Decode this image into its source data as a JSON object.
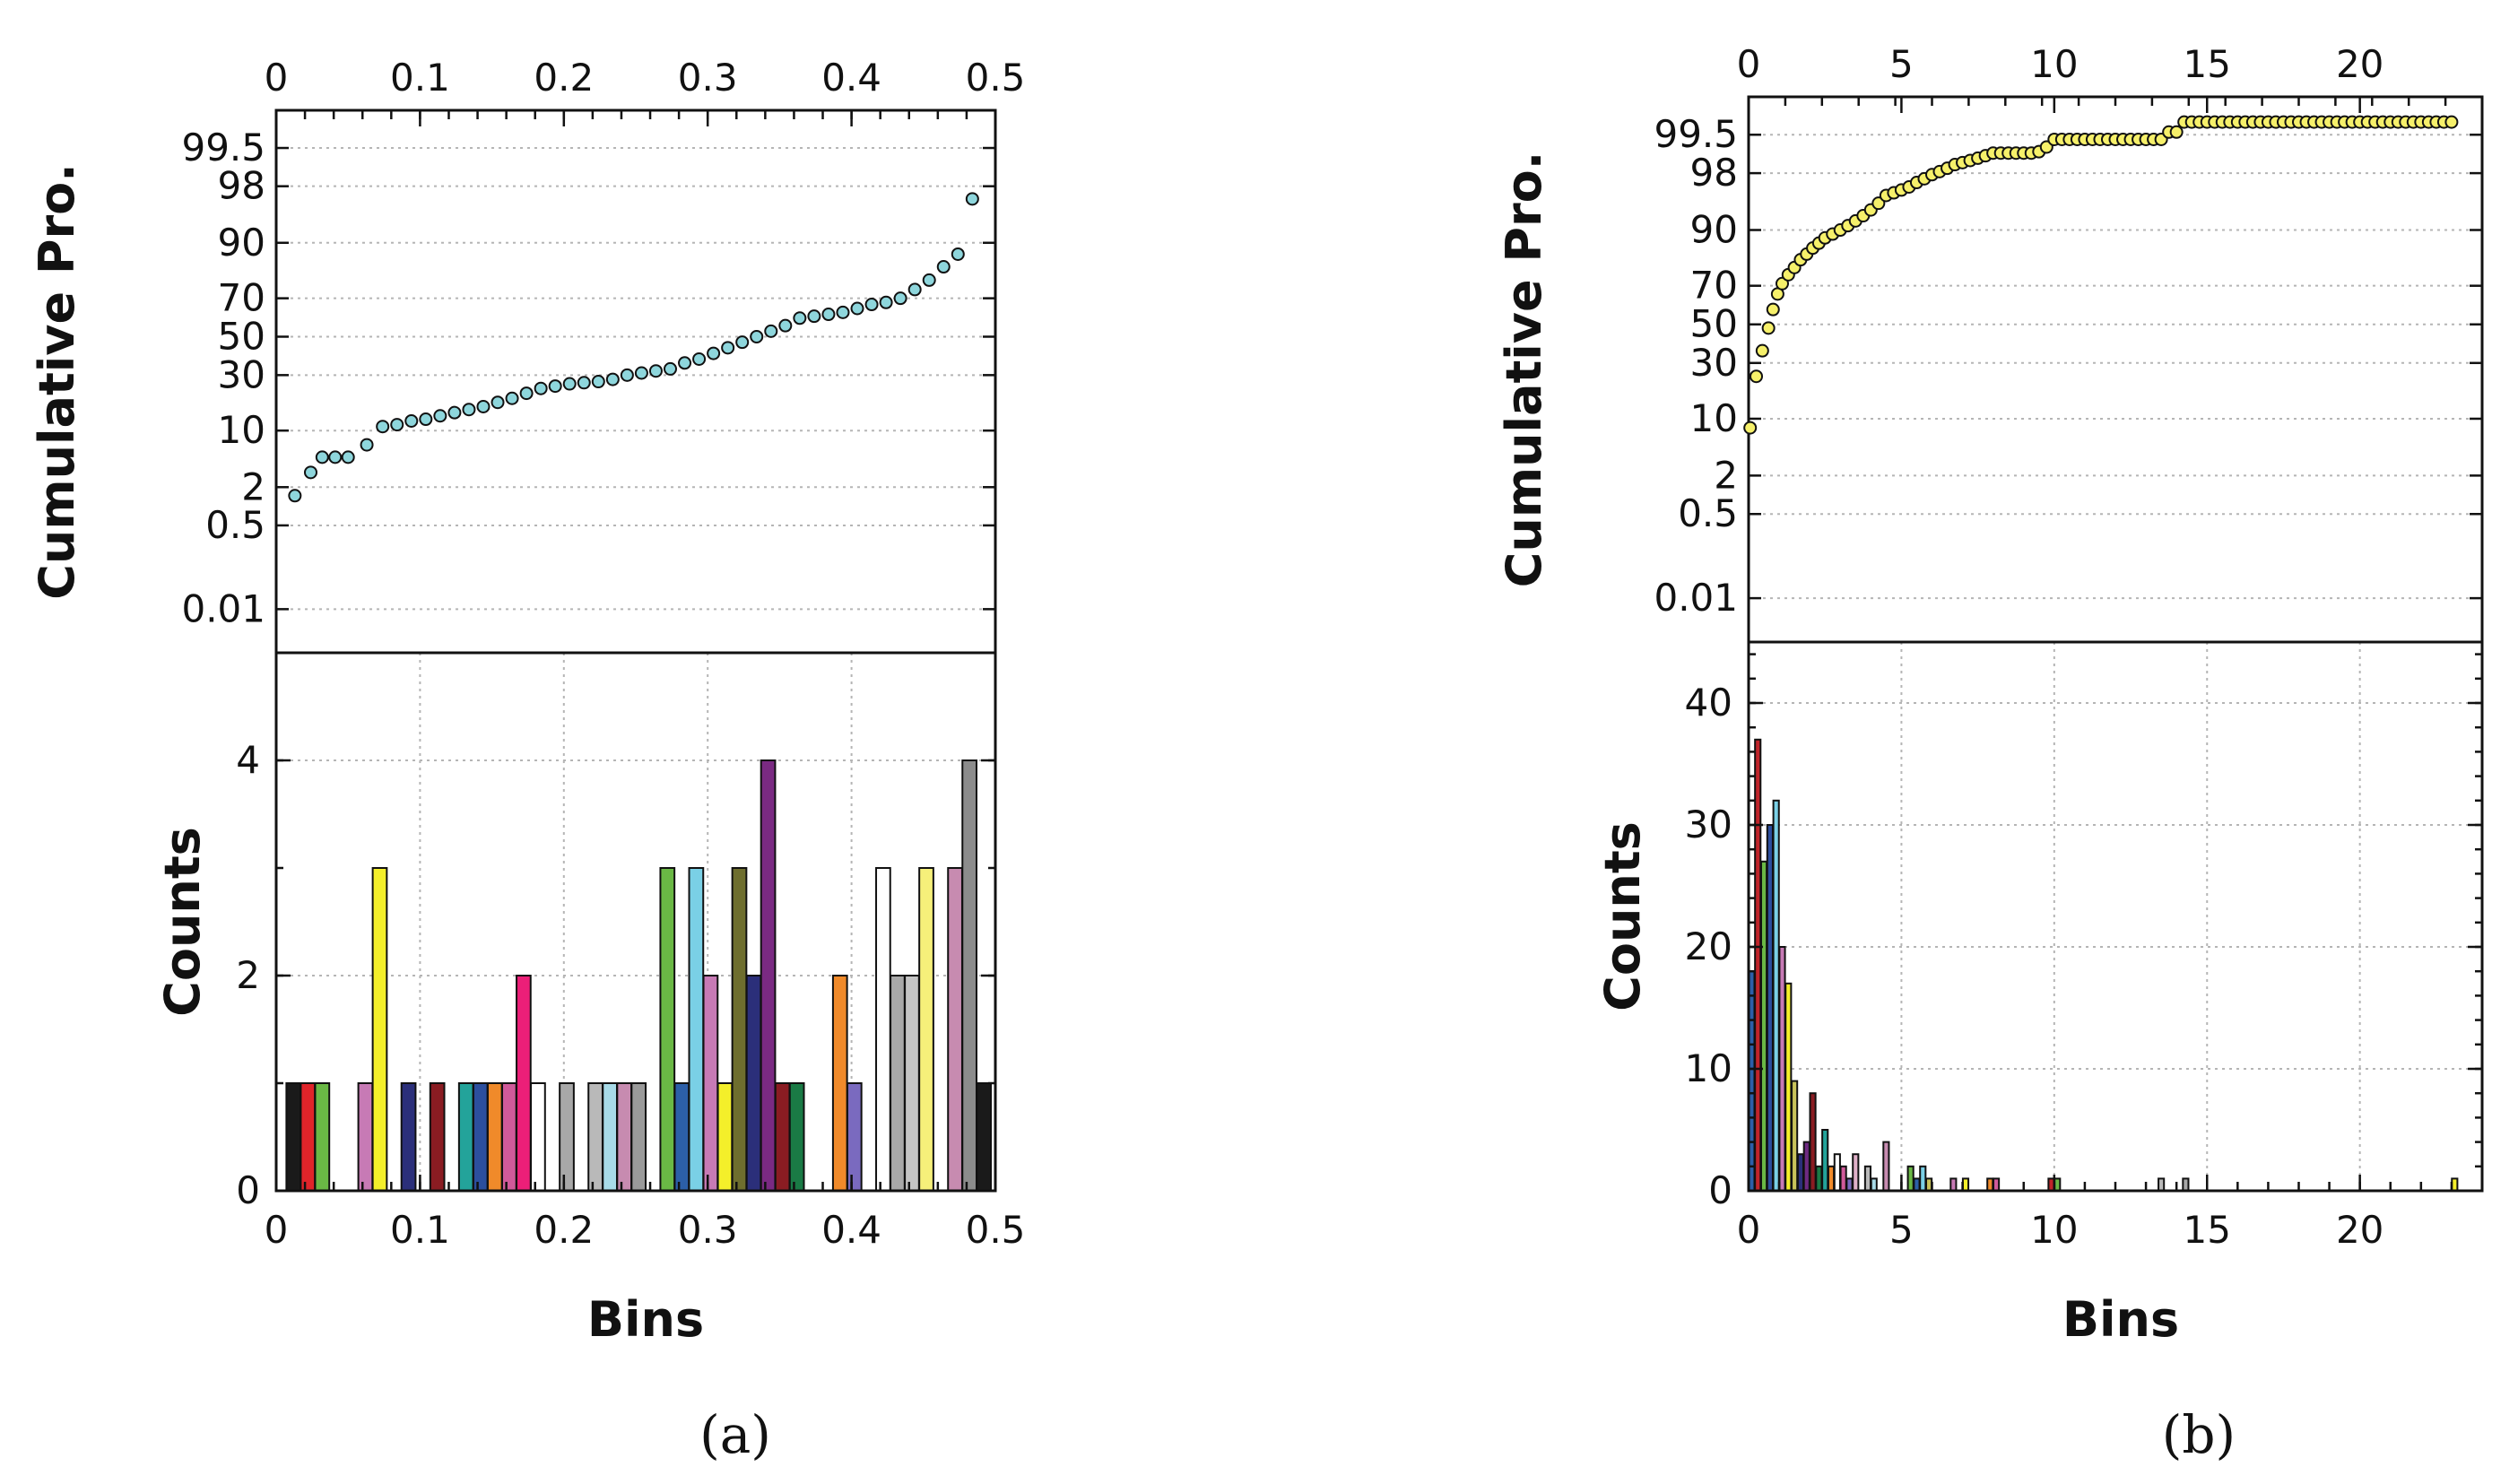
{
  "chart_data": [
    {
      "type": "scatter",
      "panel": "a",
      "caption": "(a)",
      "ylabel": "Cumulative Pro.",
      "xlim": [
        0,
        0.5
      ],
      "x_ticks": [
        "0",
        "0.1",
        "0.2",
        "0.3",
        "0.4",
        "0.5"
      ],
      "x_tick_values": [
        0,
        0.1,
        0.2,
        0.3,
        0.4,
        0.5
      ],
      "y_scale": "probability",
      "y_ticks": [
        "0.01",
        "0.5",
        "2",
        "10",
        "30",
        "50",
        "70",
        "90",
        "98",
        "99.5"
      ],
      "y_tick_values": [
        0.01,
        0.5,
        2,
        10,
        30,
        50,
        70,
        90,
        98,
        99.5
      ],
      "marker_color": "#8ed6dc",
      "points": [
        [
          0.013,
          1.5
        ],
        [
          0.024,
          3.2
        ],
        [
          0.032,
          5.0
        ],
        [
          0.041,
          5.0
        ],
        [
          0.05,
          5.0
        ],
        [
          0.063,
          7.0
        ],
        [
          0.074,
          11.0
        ],
        [
          0.084,
          11.5
        ],
        [
          0.094,
          12.5
        ],
        [
          0.104,
          13.0
        ],
        [
          0.114,
          14.0
        ],
        [
          0.124,
          15.0
        ],
        [
          0.134,
          16.0
        ],
        [
          0.144,
          17.0
        ],
        [
          0.154,
          18.5
        ],
        [
          0.164,
          20.0
        ],
        [
          0.174,
          22.0
        ],
        [
          0.184,
          24.0
        ],
        [
          0.194,
          25.0
        ],
        [
          0.204,
          26.0
        ],
        [
          0.214,
          26.5
        ],
        [
          0.224,
          27.0
        ],
        [
          0.234,
          28.0
        ],
        [
          0.244,
          30.0
        ],
        [
          0.254,
          31.0
        ],
        [
          0.264,
          32.0
        ],
        [
          0.274,
          33.0
        ],
        [
          0.284,
          36.0
        ],
        [
          0.294,
          38.0
        ],
        [
          0.304,
          41.0
        ],
        [
          0.314,
          44.0
        ],
        [
          0.324,
          47.0
        ],
        [
          0.334,
          50.0
        ],
        [
          0.344,
          53.0
        ],
        [
          0.354,
          56.0
        ],
        [
          0.364,
          60.0
        ],
        [
          0.374,
          61.0
        ],
        [
          0.384,
          62.0
        ],
        [
          0.394,
          63.0
        ],
        [
          0.404,
          65.0
        ],
        [
          0.414,
          67.0
        ],
        [
          0.424,
          68.0
        ],
        [
          0.434,
          70.0
        ],
        [
          0.444,
          74.0
        ],
        [
          0.454,
          78.0
        ],
        [
          0.464,
          83.0
        ],
        [
          0.474,
          87.0
        ],
        [
          0.484,
          97.0
        ]
      ]
    },
    {
      "type": "bar",
      "panel": "a",
      "xlabel": "Bins",
      "ylabel": "Counts",
      "xlim": [
        0,
        0.5
      ],
      "ylim": [
        0,
        5
      ],
      "x_ticks": [
        "0",
        "0.1",
        "0.2",
        "0.3",
        "0.4",
        "0.5"
      ],
      "x_tick_values": [
        0,
        0.1,
        0.2,
        0.3,
        0.4,
        0.5
      ],
      "y_ticks": [
        "0",
        "2",
        "4"
      ],
      "y_tick_values": [
        0,
        2,
        4
      ],
      "bar_width": 0.0098,
      "bars": [
        {
          "x": 0.012,
          "value": 1,
          "color": "#1a1a1a"
        },
        {
          "x": 0.022,
          "value": 1,
          "color": "#e0242a"
        },
        {
          "x": 0.032,
          "value": 1,
          "color": "#6ab845"
        },
        {
          "x": 0.062,
          "value": 1,
          "color": "#c77ab5"
        },
        {
          "x": 0.072,
          "value": 3,
          "color": "#f4ef2a"
        },
        {
          "x": 0.092,
          "value": 1,
          "color": "#2b2f7a"
        },
        {
          "x": 0.112,
          "value": 1,
          "color": "#8a1c22"
        },
        {
          "x": 0.132,
          "value": 1,
          "color": "#23a39a"
        },
        {
          "x": 0.142,
          "value": 1,
          "color": "#2c4f9e"
        },
        {
          "x": 0.152,
          "value": 1,
          "color": "#f08a2a"
        },
        {
          "x": 0.162,
          "value": 1,
          "color": "#d05a9a"
        },
        {
          "x": 0.172,
          "value": 2,
          "color": "#ec1f78"
        },
        {
          "x": 0.182,
          "value": 1,
          "color": "#ffffff"
        },
        {
          "x": 0.202,
          "value": 1,
          "color": "#a8a8a8"
        },
        {
          "x": 0.222,
          "value": 1,
          "color": "#b9b9b9"
        },
        {
          "x": 0.232,
          "value": 1,
          "color": "#a8dbe8"
        },
        {
          "x": 0.242,
          "value": 1,
          "color": "#c78bb0"
        },
        {
          "x": 0.252,
          "value": 1,
          "color": "#9a9a9a"
        },
        {
          "x": 0.272,
          "value": 3,
          "color": "#6ab845"
        },
        {
          "x": 0.282,
          "value": 1,
          "color": "#2c5fa8"
        },
        {
          "x": 0.292,
          "value": 3,
          "color": "#7ad0e6"
        },
        {
          "x": 0.302,
          "value": 2,
          "color": "#c77ab5"
        },
        {
          "x": 0.312,
          "value": 1,
          "color": "#f4ef2a"
        },
        {
          "x": 0.322,
          "value": 3,
          "color": "#6e6e2e"
        },
        {
          "x": 0.332,
          "value": 2,
          "color": "#2b2f7a"
        },
        {
          "x": 0.342,
          "value": 4,
          "color": "#7a2a82"
        },
        {
          "x": 0.352,
          "value": 1,
          "color": "#8a1c22"
        },
        {
          "x": 0.362,
          "value": 1,
          "color": "#1a7a45"
        },
        {
          "x": 0.392,
          "value": 2,
          "color": "#f08a2a"
        },
        {
          "x": 0.402,
          "value": 1,
          "color": "#7a6abf"
        },
        {
          "x": 0.422,
          "value": 3,
          "color": "#ffffff"
        },
        {
          "x": 0.432,
          "value": 2,
          "color": "#a8a8a8"
        },
        {
          "x": 0.442,
          "value": 2,
          "color": "#c4c4c4"
        },
        {
          "x": 0.452,
          "value": 3,
          "color": "#f6f07a"
        },
        {
          "x": 0.472,
          "value": 3,
          "color": "#c78bb0"
        },
        {
          "x": 0.482,
          "value": 4,
          "color": "#8c8c8c"
        },
        {
          "x": 0.492,
          "value": 1,
          "color": "#1a1a1a"
        }
      ]
    },
    {
      "type": "scatter",
      "panel": "b",
      "caption": "(b)",
      "ylabel": "Cumulative Pro.",
      "xlim": [
        0,
        24
      ],
      "x_ticks": [
        "0",
        "5",
        "10",
        "15",
        "20"
      ],
      "x_tick_values": [
        0,
        5,
        10,
        15,
        20
      ],
      "y_scale": "probability",
      "y_ticks": [
        "0.01",
        "0.5",
        "2",
        "10",
        "30",
        "50",
        "70",
        "90",
        "98",
        "99.5"
      ],
      "y_tick_values": [
        0.01,
        0.5,
        2,
        10,
        30,
        50,
        70,
        90,
        98,
        99.5
      ],
      "marker_color": "#f6f06a",
      "points": [
        [
          0.05,
          8
        ],
        [
          0.25,
          24
        ],
        [
          0.45,
          36
        ],
        [
          0.65,
          48
        ],
        [
          0.8,
          58
        ],
        [
          0.95,
          66
        ],
        [
          1.1,
          71
        ],
        [
          1.3,
          75
        ],
        [
          1.5,
          78
        ],
        [
          1.7,
          81
        ],
        [
          1.9,
          83
        ],
        [
          2.1,
          85
        ],
        [
          2.3,
          86.5
        ],
        [
          2.5,
          88
        ],
        [
          2.75,
          89
        ],
        [
          3.0,
          90
        ],
        [
          3.25,
          91
        ],
        [
          3.5,
          92
        ],
        [
          3.75,
          93
        ],
        [
          4.0,
          94
        ],
        [
          4.25,
          95
        ],
        [
          4.5,
          96
        ],
        [
          4.75,
          96.3
        ],
        [
          5.0,
          96.6
        ],
        [
          5.25,
          96.9
        ],
        [
          5.5,
          97.3
        ],
        [
          5.75,
          97.6
        ],
        [
          6.0,
          97.9
        ],
        [
          6.25,
          98.1
        ],
        [
          6.5,
          98.3
        ],
        [
          6.75,
          98.5
        ],
        [
          7.0,
          98.6
        ],
        [
          7.25,
          98.7
        ],
        [
          7.5,
          98.8
        ],
        [
          7.75,
          98.9
        ],
        [
          8.0,
          99.0
        ],
        [
          8.25,
          99.0
        ],
        [
          8.5,
          99.0
        ],
        [
          8.75,
          99.0
        ],
        [
          9.0,
          99.0
        ],
        [
          9.25,
          99.0
        ],
        [
          9.5,
          99.05
        ],
        [
          9.75,
          99.2
        ],
        [
          10.0,
          99.4
        ],
        [
          10.25,
          99.4
        ],
        [
          10.5,
          99.4
        ],
        [
          10.75,
          99.4
        ],
        [
          11.0,
          99.4
        ],
        [
          11.25,
          99.4
        ],
        [
          11.5,
          99.4
        ],
        [
          11.75,
          99.4
        ],
        [
          12.0,
          99.4
        ],
        [
          12.25,
          99.4
        ],
        [
          12.5,
          99.4
        ],
        [
          12.75,
          99.4
        ],
        [
          13.0,
          99.4
        ],
        [
          13.25,
          99.4
        ],
        [
          13.5,
          99.4
        ],
        [
          13.75,
          99.55
        ],
        [
          14.0,
          99.55
        ],
        [
          14.25,
          99.7
        ],
        [
          14.5,
          99.7
        ],
        [
          14.75,
          99.7
        ],
        [
          15.0,
          99.7
        ],
        [
          15.25,
          99.7
        ],
        [
          15.5,
          99.7
        ],
        [
          15.75,
          99.7
        ],
        [
          16.0,
          99.7
        ],
        [
          16.25,
          99.7
        ],
        [
          16.5,
          99.7
        ],
        [
          16.75,
          99.7
        ],
        [
          17.0,
          99.7
        ],
        [
          17.25,
          99.7
        ],
        [
          17.5,
          99.7
        ],
        [
          17.75,
          99.7
        ],
        [
          18.0,
          99.7
        ],
        [
          18.25,
          99.7
        ],
        [
          18.5,
          99.7
        ],
        [
          18.75,
          99.7
        ],
        [
          19.0,
          99.7
        ],
        [
          19.25,
          99.7
        ],
        [
          19.5,
          99.7
        ],
        [
          19.75,
          99.7
        ],
        [
          20.0,
          99.7
        ],
        [
          20.25,
          99.7
        ],
        [
          20.5,
          99.7
        ],
        [
          20.75,
          99.7
        ],
        [
          21.0,
          99.7
        ],
        [
          21.25,
          99.7
        ],
        [
          21.5,
          99.7
        ],
        [
          21.75,
          99.7
        ],
        [
          22.0,
          99.7
        ],
        [
          22.25,
          99.7
        ],
        [
          22.5,
          99.7
        ],
        [
          22.75,
          99.7
        ],
        [
          23.0,
          99.7
        ]
      ]
    },
    {
      "type": "bar",
      "panel": "b",
      "xlabel": "Bins",
      "ylabel": "Counts",
      "xlim": [
        0,
        24
      ],
      "ylim": [
        0,
        45
      ],
      "x_ticks": [
        "0",
        "5",
        "10",
        "15",
        "20"
      ],
      "x_tick_values": [
        0,
        5,
        10,
        15,
        20
      ],
      "y_ticks": [
        "0",
        "10",
        "20",
        "30",
        "40"
      ],
      "y_tick_values": [
        0,
        10,
        20,
        30,
        40
      ],
      "bar_width": 0.18,
      "bars": [
        {
          "x": 0.1,
          "value": 18,
          "color": "#2c5fa8"
        },
        {
          "x": 0.3,
          "value": 37,
          "color": "#c0242a"
        },
        {
          "x": 0.5,
          "value": 27,
          "color": "#6ab845"
        },
        {
          "x": 0.7,
          "value": 30,
          "color": "#2c4f9e"
        },
        {
          "x": 0.9,
          "value": 32,
          "color": "#7ad0e6"
        },
        {
          "x": 1.1,
          "value": 20,
          "color": "#c77ab5"
        },
        {
          "x": 1.3,
          "value": 17,
          "color": "#f4ef2a"
        },
        {
          "x": 1.5,
          "value": 9,
          "color": "#c8c25a"
        },
        {
          "x": 1.7,
          "value": 3,
          "color": "#2b2f7a"
        },
        {
          "x": 1.9,
          "value": 4,
          "color": "#6e2a82"
        },
        {
          "x": 2.1,
          "value": 8,
          "color": "#8a1c22"
        },
        {
          "x": 2.3,
          "value": 2,
          "color": "#1a7a45"
        },
        {
          "x": 2.5,
          "value": 5,
          "color": "#23a39a"
        },
        {
          "x": 2.7,
          "value": 2,
          "color": "#f08a2a"
        },
        {
          "x": 2.9,
          "value": 3,
          "color": "#ffffff"
        },
        {
          "x": 3.1,
          "value": 2,
          "color": "#d05a9a"
        },
        {
          "x": 3.3,
          "value": 1,
          "color": "#7a6abf"
        },
        {
          "x": 3.5,
          "value": 3,
          "color": "#e0b0c8"
        },
        {
          "x": 3.9,
          "value": 2,
          "color": "#b9b9b9"
        },
        {
          "x": 4.1,
          "value": 1,
          "color": "#a8dbe8"
        },
        {
          "x": 4.5,
          "value": 4,
          "color": "#c78bb0"
        },
        {
          "x": 5.3,
          "value": 2,
          "color": "#6ab845"
        },
        {
          "x": 5.5,
          "value": 1,
          "color": "#2c5fa8"
        },
        {
          "x": 5.7,
          "value": 2,
          "color": "#7ad0e6"
        },
        {
          "x": 5.9,
          "value": 1,
          "color": "#c8c25a"
        },
        {
          "x": 6.7,
          "value": 1,
          "color": "#c77ab5"
        },
        {
          "x": 7.1,
          "value": 1,
          "color": "#f4ef2a"
        },
        {
          "x": 7.9,
          "value": 1,
          "color": "#f08a2a"
        },
        {
          "x": 8.1,
          "value": 1,
          "color": "#d05a9a"
        },
        {
          "x": 9.9,
          "value": 1,
          "color": "#c0242a"
        },
        {
          "x": 10.1,
          "value": 1,
          "color": "#6ab845"
        },
        {
          "x": 13.5,
          "value": 1,
          "color": "#b9b9b9"
        },
        {
          "x": 14.3,
          "value": 1,
          "color": "#a8a8a8"
        },
        {
          "x": 23.1,
          "value": 1,
          "color": "#f4ef2a"
        }
      ]
    }
  ],
  "captions": {
    "a": "(a)",
    "b": "(b)"
  }
}
